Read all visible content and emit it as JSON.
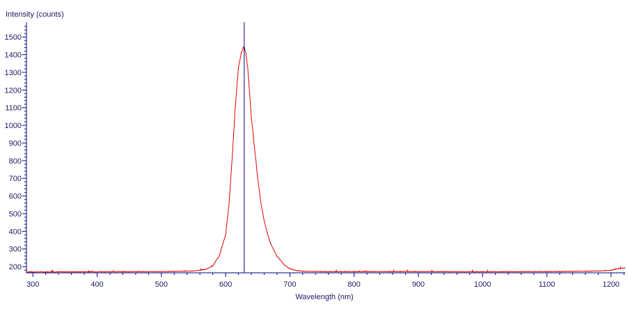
{
  "chart_data": {
    "type": "line",
    "ylabel": "Intensity (counts)",
    "xlabel": "Wavelength (nm)",
    "xlim": [
      290,
      1222
    ],
    "ylim": [
      165,
      1560
    ],
    "x_ticks": [
      300,
      400,
      500,
      600,
      700,
      800,
      900,
      1000,
      1100,
      1200
    ],
    "y_ticks": [
      200,
      300,
      400,
      500,
      600,
      700,
      800,
      900,
      1000,
      1100,
      1200,
      1300,
      1400,
      1500
    ],
    "grid": false,
    "legend": "none",
    "marker_line_x": 629,
    "colors": {
      "series": "#dd0000",
      "marker": "#000080",
      "axis": "#000080",
      "text": "#1a1a60"
    },
    "series": [
      {
        "x": [
          290,
          400,
          500,
          550,
          570,
          580,
          590,
          600,
          605,
          610,
          615,
          620,
          625,
          628,
          630,
          632,
          635,
          640,
          645,
          650,
          655,
          660,
          665,
          670,
          680,
          690,
          700,
          710,
          720,
          750,
          800,
          900,
          1000,
          1100,
          1180,
          1200,
          1210,
          1222
        ],
        "y": [
          170,
          171,
          172,
          175,
          185,
          205,
          260,
          380,
          540,
          800,
          1100,
          1330,
          1420,
          1440,
          1430,
          1400,
          1300,
          1050,
          870,
          700,
          560,
          460,
          390,
          330,
          260,
          215,
          188,
          178,
          174,
          172,
          172,
          172,
          171,
          172,
          175,
          180,
          188,
          192
        ]
      }
    ]
  }
}
